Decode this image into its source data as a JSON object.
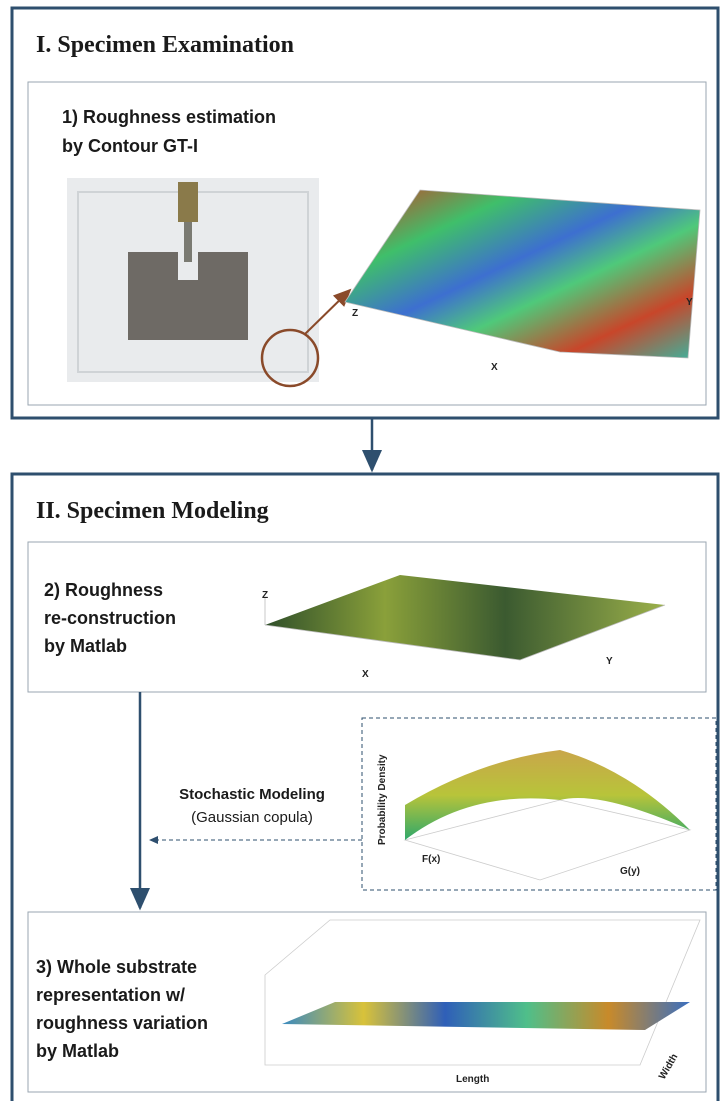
{
  "sections": [
    {
      "title": "I. Specimen Examination",
      "steps": [
        {
          "lines": [
            "1) Roughness estimation",
            "by Contour GT-I"
          ],
          "axes": [
            "Z",
            "Y",
            "X"
          ]
        }
      ]
    },
    {
      "title": "II. Specimen Modeling",
      "steps": [
        {
          "lines": [
            "2) Roughness",
            "re-construction",
            "by Matlab"
          ],
          "axes": [
            "Z",
            "X",
            "Y"
          ]
        },
        {
          "lines": [
            "3) Whole substrate",
            "representation w/",
            "roughness variation",
            "by Matlab"
          ],
          "axes": [
            "Length",
            "Width"
          ]
        }
      ],
      "stochastic": {
        "title": "Stochastic Modeling",
        "subtitle": "(Gaussian copula)",
        "axes": [
          "Probability Density",
          "F(x)",
          "G(y)"
        ]
      }
    }
  ]
}
